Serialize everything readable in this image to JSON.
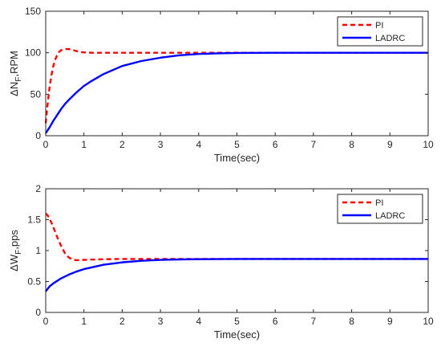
{
  "chart_data": [
    {
      "type": "line",
      "xlabel": "Time(sec)",
      "ylabel_main": "ΔN",
      "ylabel_sub": "F",
      "ylabel_tail": ",RPM",
      "xlim": [
        0,
        10
      ],
      "ylim": [
        0,
        150
      ],
      "xticks": [
        "0",
        "1",
        "2",
        "3",
        "4",
        "5",
        "6",
        "7",
        "8",
        "9",
        "10"
      ],
      "yticks": [
        "0",
        "50",
        "100",
        "150"
      ],
      "legend_position": "top-right",
      "grid": false,
      "series": [
        {
          "name": "PI",
          "color": "#ff0000",
          "style": "dashed",
          "x": [
            0,
            0.05,
            0.1,
            0.15,
            0.2,
            0.25,
            0.3,
            0.35,
            0.4,
            0.5,
            0.6,
            0.7,
            0.8,
            0.9,
            1.0,
            1.2,
            1.5,
            2,
            3,
            4,
            5,
            6,
            7,
            8,
            9,
            10
          ],
          "y": [
            15,
            38,
            58,
            73,
            84,
            92,
            97,
            101,
            103,
            104.5,
            104.5,
            103.5,
            102,
            101,
            100.5,
            100,
            100,
            100,
            100,
            100,
            100,
            100,
            100,
            100,
            100,
            100
          ]
        },
        {
          "name": "LADRC",
          "color": "#0000ff",
          "style": "solid",
          "x": [
            0,
            0.1,
            0.2,
            0.3,
            0.4,
            0.5,
            0.6,
            0.8,
            1.0,
            1.2,
            1.5,
            1.8,
            2.0,
            2.5,
            3.0,
            3.5,
            4.0,
            4.5,
            5,
            6,
            7,
            8,
            9,
            10
          ],
          "y": [
            3,
            10,
            18,
            25,
            32,
            38,
            43,
            52,
            60,
            66,
            74,
            80,
            84,
            90,
            94,
            97,
            98.5,
            99.3,
            99.7,
            100,
            100,
            100,
            100,
            100
          ]
        }
      ]
    },
    {
      "type": "line",
      "xlabel": "Time(sec)",
      "ylabel_main": "ΔW",
      "ylabel_sub": "F",
      "ylabel_tail": ",pps",
      "xlim": [
        0,
        10
      ],
      "ylim": [
        0,
        2
      ],
      "xticks": [
        "0",
        "1",
        "2",
        "3",
        "4",
        "5",
        "6",
        "7",
        "8",
        "9",
        "10"
      ],
      "yticks": [
        "0",
        "0.5",
        "1",
        "1.5",
        "2"
      ],
      "legend_position": "top-right",
      "grid": false,
      "series": [
        {
          "name": "PI",
          "color": "#ff0000",
          "style": "dashed",
          "x": [
            0,
            0.05,
            0.1,
            0.2,
            0.3,
            0.4,
            0.5,
            0.6,
            0.7,
            0.8,
            1.0,
            1.2,
            1.5,
            2,
            3,
            4,
            5,
            6,
            7,
            8,
            9,
            10
          ],
          "y": [
            1.6,
            1.57,
            1.52,
            1.38,
            1.22,
            1.08,
            0.96,
            0.89,
            0.855,
            0.845,
            0.85,
            0.855,
            0.86,
            0.865,
            0.865,
            0.865,
            0.865,
            0.865,
            0.865,
            0.865,
            0.865,
            0.865
          ]
        },
        {
          "name": "LADRC",
          "color": "#0000ff",
          "style": "solid",
          "x": [
            0,
            0.1,
            0.2,
            0.4,
            0.6,
            0.8,
            1.0,
            1.5,
            2.0,
            2.5,
            3.0,
            3.5,
            4.0,
            5,
            6,
            7,
            8,
            9,
            10
          ],
          "y": [
            0.34,
            0.42,
            0.47,
            0.55,
            0.61,
            0.66,
            0.7,
            0.77,
            0.81,
            0.835,
            0.85,
            0.857,
            0.861,
            0.864,
            0.865,
            0.865,
            0.865,
            0.865,
            0.865
          ]
        }
      ]
    }
  ]
}
